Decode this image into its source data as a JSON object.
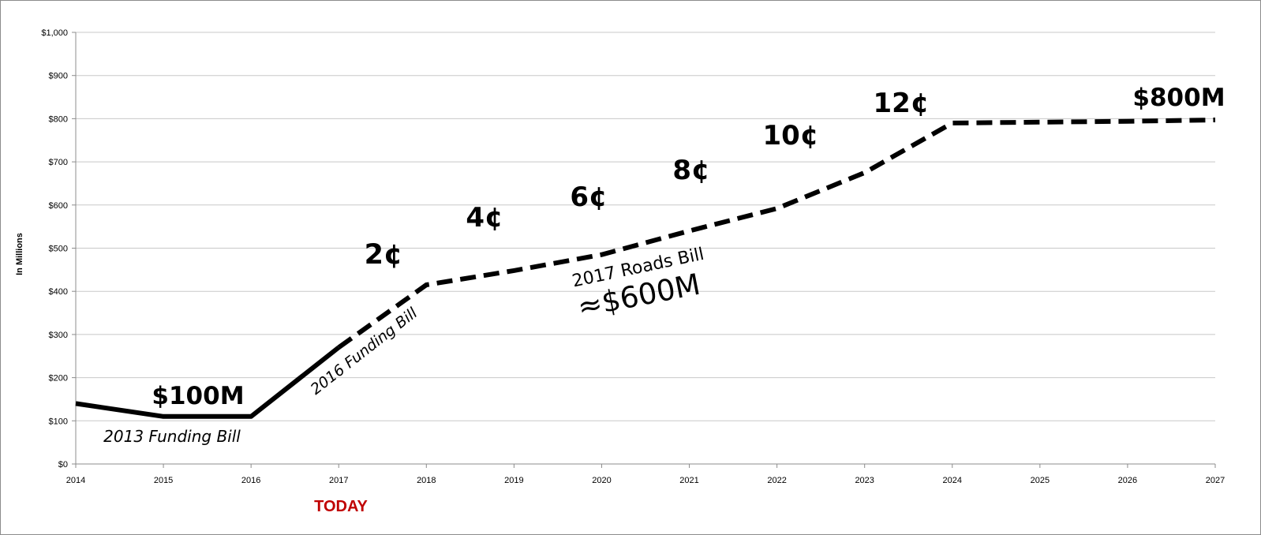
{
  "chart_data": {
    "type": "line",
    "ylabel": "In Millions",
    "xlim": [
      2014,
      2027
    ],
    "ylim": [
      0,
      1000
    ],
    "x_ticks": [
      "2014",
      "2015",
      "2016",
      "2017",
      "2018",
      "2019",
      "2020",
      "2021",
      "2022",
      "2023",
      "2024",
      "2025",
      "2026",
      "2027"
    ],
    "y_ticks": [
      "$0",
      "$100",
      "$200",
      "$300",
      "$400",
      "$500",
      "$600",
      "$700",
      "$800",
      "$900",
      "$1,000"
    ],
    "grid": true,
    "series": [
      {
        "style": "solid",
        "x": [
          2014,
          2015,
          2016,
          2017
        ],
        "y": [
          140,
          110,
          110,
          270
        ]
      },
      {
        "style": "dashed",
        "x": [
          2017,
          2018,
          2019,
          2020,
          2021,
          2022,
          2023,
          2024,
          2025,
          2026,
          2027
        ],
        "y": [
          270,
          415,
          448,
          485,
          540,
          592,
          675,
          790,
          792,
          794,
          797
        ]
      }
    ],
    "annotations": [
      {
        "text": "$100M",
        "style": "bold"
      },
      {
        "text": "2013 Funding Bill",
        "style": "italic"
      },
      {
        "text": "2016 Funding Bill",
        "style": "italic"
      },
      {
        "text": "2017 Roads Bill",
        "style": "regular"
      },
      {
        "text": "≈$600M",
        "style": "regular"
      },
      {
        "text": "2¢",
        "style": "bold"
      },
      {
        "text": "4¢",
        "style": "bold"
      },
      {
        "text": "6¢",
        "style": "bold"
      },
      {
        "text": "8¢",
        "style": "bold"
      },
      {
        "text": "10¢",
        "style": "bold"
      },
      {
        "text": "12¢",
        "style": "bold"
      },
      {
        "text": "$800M",
        "style": "bold"
      }
    ],
    "marker_label": {
      "text": "TODAY",
      "color": "#c00000"
    }
  }
}
